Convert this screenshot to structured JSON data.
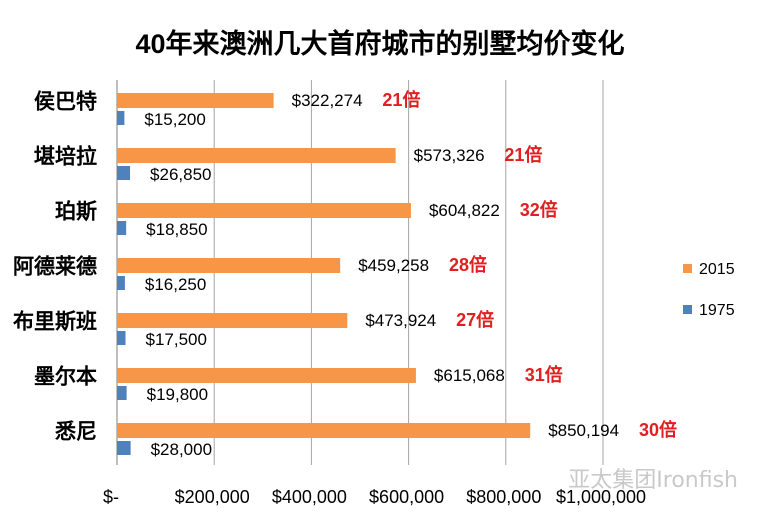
{
  "chart_data": {
    "type": "bar",
    "orientation": "horizontal",
    "title": "40年来澳洲几大首府城市的别墅均价变化",
    "categories": [
      "侯巴特",
      "堪培拉",
      "珀斯",
      "阿德莱德",
      "布里斯班",
      "墨尔本",
      "悉尼"
    ],
    "series": [
      {
        "name": "2015",
        "color": "#f79646",
        "values": [
          322274,
          573326,
          604822,
          459258,
          473924,
          615068,
          850194
        ],
        "labels": [
          "$322,274",
          "$573,326",
          "$604,822",
          "$459,258",
          "$473,924",
          "$615,068",
          "$850,194"
        ]
      },
      {
        "name": "1975",
        "color": "#4f81bd",
        "values": [
          15200,
          26850,
          18850,
          16250,
          17500,
          19800,
          28000
        ],
        "labels": [
          "$15,200",
          "$26,850",
          "$18,850",
          "$16,250",
          "$17,500",
          "$19,800",
          "$28,000"
        ]
      }
    ],
    "multipliers": [
      "21倍",
      "21倍",
      "32倍",
      "28倍",
      "27倍",
      "31倍",
      "30倍"
    ],
    "multiplier_color": "#e02020",
    "xlim": [
      0,
      1000000
    ],
    "x_ticks": [
      0,
      200000,
      400000,
      600000,
      800000,
      1000000
    ],
    "x_tick_labels": [
      "$-",
      "$200,000",
      "$400,000",
      "$600,000",
      "$800,000",
      "$1,000,000"
    ],
    "grid": true,
    "legend_position": "right"
  },
  "watermark": "亚太集团Ironfish"
}
